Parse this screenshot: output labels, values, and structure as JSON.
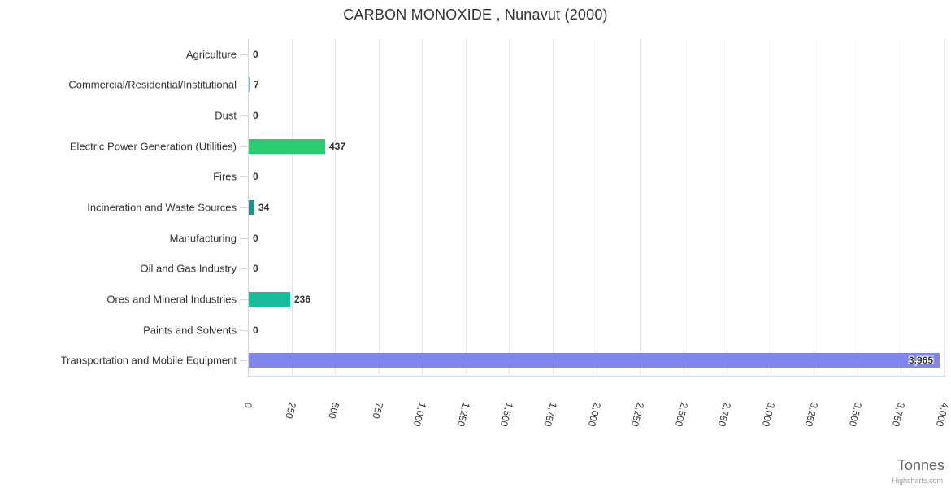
{
  "chart_data": {
    "type": "bar",
    "orientation": "horizontal",
    "title": "CARBON MONOXIDE , Nunavut (2000)",
    "categories": [
      "Agriculture",
      "Commercial/Residential/Institutional",
      "Dust",
      "Electric Power Generation (Utilities)",
      "Fires",
      "Incineration and Waste Sources",
      "Manufacturing",
      "Oil and Gas Industry",
      "Ores and Mineral Industries",
      "Paints and Solvents",
      "Transportation and Mobile Equipment"
    ],
    "values": [
      0,
      7,
      0,
      437,
      0,
      34,
      0,
      0,
      236,
      0,
      3965
    ],
    "value_labels": [
      "0",
      "7",
      "0",
      "437",
      "0",
      "34",
      "0",
      "0",
      "236",
      "0",
      "3,965"
    ],
    "bar_colors": [
      "#7cb5ec",
      "#7cb5ec",
      "#7cb5ec",
      "#2ecc71",
      "#7cb5ec",
      "#2d8b8d",
      "#7cb5ec",
      "#7cb5ec",
      "#18bc9c",
      "#7cb5ec",
      "#8085e9"
    ],
    "label_inside": [
      false,
      false,
      false,
      false,
      false,
      false,
      false,
      false,
      false,
      false,
      true
    ],
    "xlabel": "Tonnes",
    "xlim": [
      0,
      4000
    ],
    "x_ticks": [
      0,
      250,
      500,
      750,
      1000,
      1250,
      1500,
      1750,
      2000,
      2250,
      2500,
      2750,
      3000,
      3250,
      3500,
      3750,
      4000
    ],
    "x_tick_labels": [
      "0",
      "250",
      "500",
      "750",
      "1,000",
      "1,250",
      "1,500",
      "1,750",
      "2,000",
      "2,250",
      "2,500",
      "2,750",
      "3,000",
      "3,250",
      "3,500",
      "3,750",
      "4,000"
    ],
    "grid": true,
    "legend": "none",
    "colors": {
      "grid": "#e6e6e6",
      "axis": "#ccd6eb",
      "text": "#333333",
      "axis_title": "#666666",
      "credit": "#999999"
    },
    "credit": "Highcharts.com"
  }
}
